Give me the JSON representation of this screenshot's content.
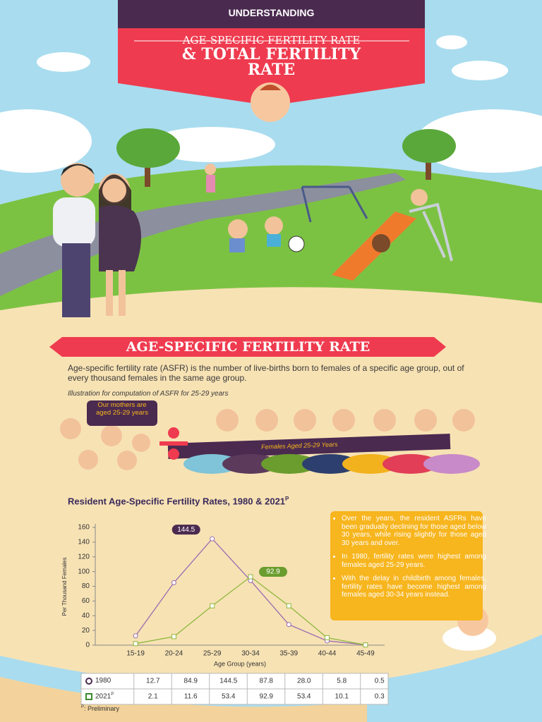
{
  "header": {
    "kicker": "UNDERSTANDING",
    "title_line1": "AGE-SPECIFIC FERTILITY RATE",
    "title_line2": "& TOTAL FERTILITY",
    "title_line3": "RATE"
  },
  "section": {
    "heading": "AGE-SPECIFIC FERTILITY RATE",
    "definition": "Age-specific fertility rate (ASFR) is the number of live-births born to females of a specific age group, out of every thousand females in the same age group."
  },
  "illustration": {
    "caption": "Illustration for computation of ASFR for 25-29 years",
    "mothers_bubble": "Our mothers are aged 25-29 years",
    "banner": "Females Aged 25-29 Years"
  },
  "chart_data": {
    "type": "line",
    "title": "Resident Age-Specific Fertility Rates, 1980 & 2021",
    "title_superscript": "P",
    "xlabel": "Age Group (years)",
    "ylabel": "Per Thousand Females",
    "categories": [
      "15-19",
      "20-24",
      "25-29",
      "30-34",
      "35-39",
      "40-44",
      "45-49"
    ],
    "series": [
      {
        "name": "1980",
        "color": "#9b6bb0",
        "values": [
          12.7,
          84.9,
          144.5,
          87.8,
          28.0,
          5.8,
          0.5
        ],
        "value_labels": [
          "12.7",
          "84.9",
          "144.5",
          "87.8",
          "28.0",
          "5.8",
          "0.5"
        ]
      },
      {
        "name": "2021",
        "name_superscript": "P",
        "color": "#8db83c",
        "values": [
          2.1,
          11.6,
          53.4,
          92.9,
          53.4,
          10.1,
          0.3
        ],
        "value_labels": [
          "2.1",
          "11.6",
          "53.4",
          "92.9",
          "53.4",
          "10.1",
          "0.3"
        ]
      }
    ],
    "ylim": [
      0,
      160
    ],
    "yticks": [
      0,
      20,
      40,
      60,
      80,
      100,
      120,
      140,
      160
    ],
    "grid": false
  },
  "bullets": [
    "Over the years, the resident ASFRs have been gradually declining for those aged below 30 years, while rising slightly for those aged 30 years and over.",
    "In 1980, fertility rates were highest among females aged 25-29 years.",
    "With the delay in childbirth among females, fertility rates have become highest among females aged 30-34 years instead."
  ],
  "footnote": {
    "mark": "P",
    "text": ": Preliminary"
  }
}
